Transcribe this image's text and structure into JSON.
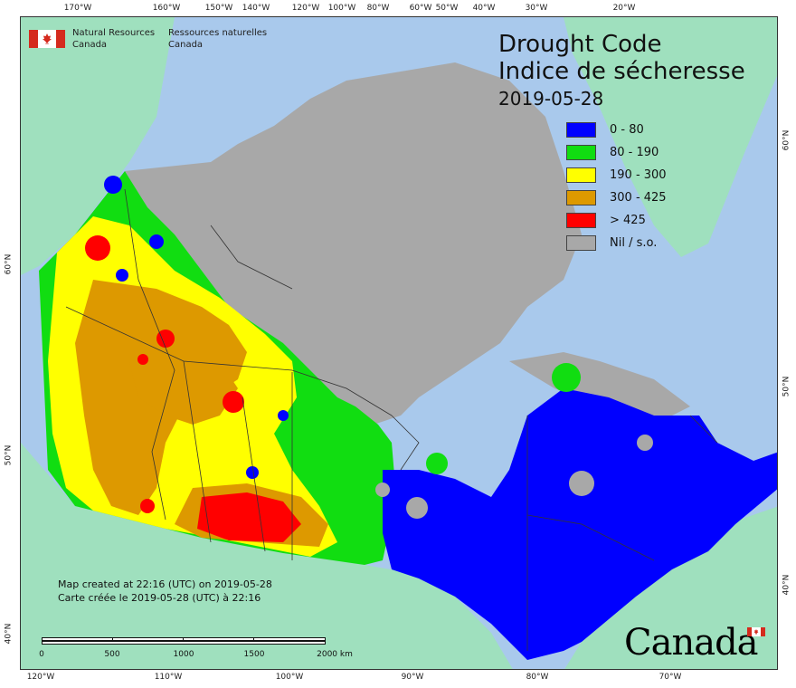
{
  "map": {
    "title_en": "Drought Code",
    "title_fr": "Indice de sécheresse",
    "date": "2019-05-28",
    "ocean_color": "#a9c9ec",
    "land_other_color": "#9fe0be"
  },
  "agency": {
    "name_en_line1": "Natural Resources",
    "name_en_line2": "Canada",
    "name_fr_line1": "Ressources naturelles",
    "name_fr_line2": "Canada",
    "flag_icon": "canada-flag-icon"
  },
  "legend": [
    {
      "label": "0 - 80",
      "color": "#0000ff"
    },
    {
      "label": "80 - 190",
      "color": "#11dd11"
    },
    {
      "label": "190 - 300",
      "color": "#ffff00"
    },
    {
      "label": "300 - 425",
      "color": "#dd9900"
    },
    {
      "label": "> 425",
      "color": "#ff0000"
    },
    {
      "label": "Nil / s.o.",
      "color": "#a8a8a8"
    }
  ],
  "credit": {
    "line1": "Map created at 22:16 (UTC) on 2019-05-28",
    "line2": "Carte créée le 2019-05-28 (UTC) à 22:16"
  },
  "scale": {
    "labels": [
      "0",
      "500",
      "1000",
      "1500",
      "2000 km"
    ]
  },
  "axes": {
    "top": [
      "170°W",
      "160°W",
      "150°W",
      "140°W",
      "120°W",
      "100°W",
      "80°W",
      "60°W",
      "50°W",
      "40°W",
      "30°W",
      "20°W"
    ],
    "bottom": [
      "120°W",
      "110°W",
      "100°W",
      "90°W",
      "80°W",
      "70°W"
    ],
    "left": [
      "60°N",
      "50°N",
      "40°N"
    ],
    "right": [
      "60°N",
      "50°N",
      "40°N"
    ]
  },
  "wordmark": "Canada"
}
